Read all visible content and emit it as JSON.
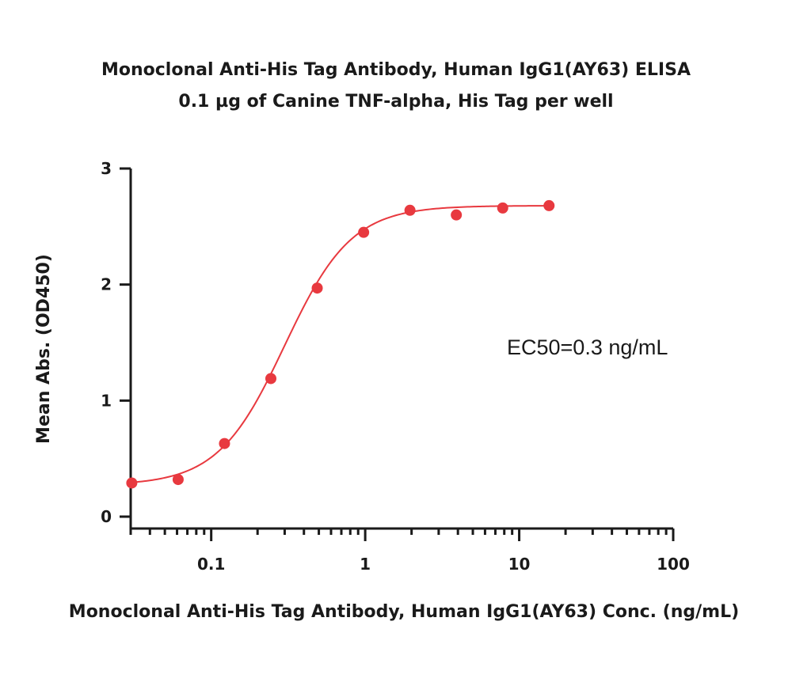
{
  "chart_data": {
    "type": "scatter",
    "title": "Monoclonal Anti-His Tag Antibody, Human IgG1(AY63) ELISA",
    "subtitle": "0.1 µg of Canine TNF-alpha, His Tag per well",
    "xlabel": "Monoclonal Anti-His Tag Antibody, Human IgG1(AY63) Conc. (ng/mL)",
    "ylabel": "Mean Abs. (OD450)",
    "x_scale": "log",
    "xlim": [
      0.03,
      100
    ],
    "ylim": [
      0,
      3
    ],
    "x_ticks": [
      0.1,
      1,
      10,
      100
    ],
    "x_tick_labels": [
      "0.1",
      "1",
      "10",
      "100"
    ],
    "y_ticks": [
      0,
      1,
      2,
      3
    ],
    "y_tick_labels": [
      "0",
      "1",
      "2",
      "3"
    ],
    "grid": false,
    "color": "#e8393f",
    "series": [
      {
        "x": [
          0.0305,
          0.061,
          0.122,
          0.244,
          0.488,
          0.977,
          1.953,
          3.906,
          7.813,
          15.625
        ],
        "y": [
          0.29,
          0.32,
          0.63,
          1.19,
          1.97,
          2.45,
          2.64,
          2.6,
          2.66,
          2.68
        ]
      }
    ],
    "fit": {
      "model": "4PL",
      "bottom": 0.27,
      "top": 2.68,
      "ec50": 0.3,
      "hill": 2.0
    },
    "annotations": [
      "EC50=0.3 ng/mL"
    ]
  }
}
